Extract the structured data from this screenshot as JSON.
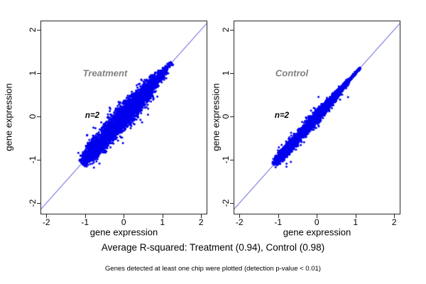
{
  "caption": "Average R-squared: Treatment (0.94), Control (0.98)",
  "footnote": "Genes detected at least one chip were plotted (detection p-value < 0.01)",
  "colors": {
    "points": "#0000ee",
    "identity_line": "#3434d6",
    "axis": "#262626",
    "panel_label": "#808080"
  },
  "chart_data": [
    {
      "type": "scatter",
      "panel_label": "Treatment",
      "annotation": "n=2",
      "xlabel": "gene expression",
      "ylabel": "gene expression",
      "xlim": [
        -2.15,
        2.16
      ],
      "ylim": [
        -2.26,
        2.21
      ],
      "xticks": [
        -2,
        -1,
        0,
        1,
        2
      ],
      "yticks": [
        -2,
        -1,
        0,
        1,
        2
      ],
      "identity_line": {
        "slope": 1,
        "intercept": 0
      },
      "r_squared": 0.94,
      "n_replicates": 2,
      "cloud": {
        "n_points": 4600,
        "t_min": -1.08,
        "t_max": 1.26,
        "sigma_max": 0.105,
        "sigma_min": 0.018,
        "envelope_center": -0.05,
        "envelope_halfspan": 1.35,
        "bottom_cluster_t": -0.85,
        "bottom_cluster_weight": 0.18,
        "bottom_cluster_sd": 0.13,
        "outlier_frac": 0.015,
        "seed": 12345
      }
    },
    {
      "type": "scatter",
      "panel_label": "Control",
      "annotation": "n=2",
      "xlabel": "gene expression",
      "ylabel": "gene expression",
      "xlim": [
        -2.15,
        2.16
      ],
      "ylim": [
        -2.26,
        2.21
      ],
      "xticks": [
        -2,
        -1,
        0,
        1,
        2
      ],
      "yticks": [
        -2,
        -1,
        0,
        1,
        2
      ],
      "identity_line": {
        "slope": 1,
        "intercept": 0
      },
      "r_squared": 0.98,
      "n_replicates": 2,
      "cloud": {
        "n_points": 4000,
        "t_min": -1.12,
        "t_max": 1.18,
        "sigma_max": 0.055,
        "sigma_min": 0.014,
        "envelope_center": -0.35,
        "envelope_halfspan": 1.25,
        "bottom_cluster_t": -0.85,
        "bottom_cluster_weight": 0.22,
        "bottom_cluster_sd": 0.12,
        "outlier_frac": 0.012,
        "seed": 67890
      }
    }
  ]
}
